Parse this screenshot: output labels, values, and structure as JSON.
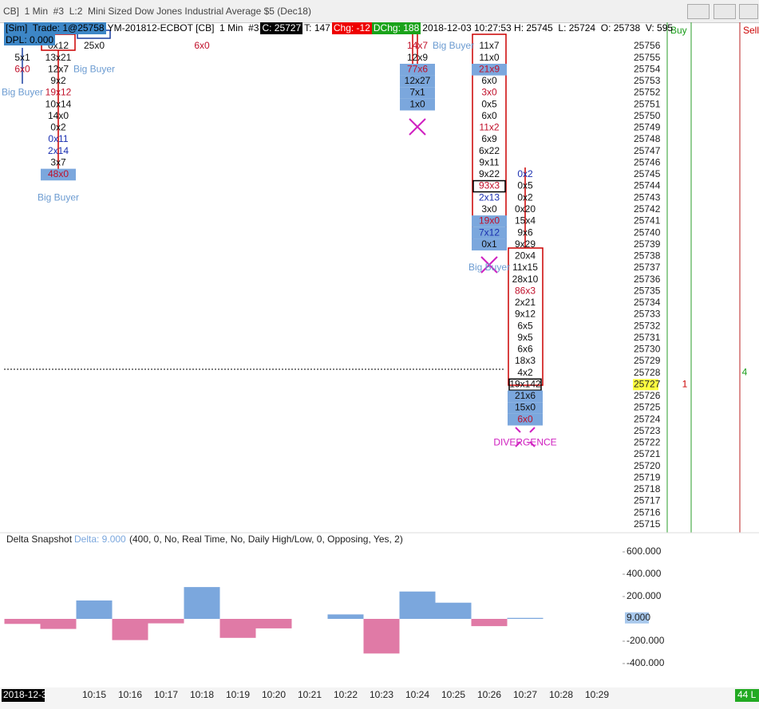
{
  "window_title": "CB]  1 Min  #3  L:2  Mini Sized Dow Jones Industrial Average $5 (Dec18)",
  "header": {
    "sim": "[Sim]  Trade: 1@25758",
    "instrument": "YM-201812-ECBOT [CB]  1 Min  #3",
    "close": "C: 25727",
    "ticks": "T: 147",
    "chg": "Chg: -12",
    "dchg": "DChg: 188",
    "info": "2018-12-03 10:27:53 H: 25745  L: 25724  O: 25738  V: 595",
    "dpl": "DPL: 0.000"
  },
  "prices": [
    25756,
    25755,
    25754,
    25753,
    25752,
    25751,
    25750,
    25749,
    25748,
    25747,
    25746,
    25745,
    25744,
    25743,
    25742,
    25741,
    25740,
    25739,
    25738,
    25737,
    25736,
    25735,
    25734,
    25733,
    25732,
    25731,
    25730,
    25729,
    25728,
    25727,
    25726,
    25725,
    25724,
    25723,
    25722,
    25721,
    25720,
    25719,
    25718,
    25717,
    25716,
    25715
  ],
  "current_price": 25727,
  "side_columns": {
    "buy": "Buy",
    "sell": "Sell",
    "buy_value": "1",
    "sell_value": "4"
  },
  "bars": {
    "times": [
      null,
      null,
      "10:15",
      "10:16",
      "10:17",
      "10:18",
      "10:19",
      "10:20",
      "10:21",
      "10:22",
      "10:23",
      "10:24",
      "10:25",
      "10:26",
      "10:27",
      "10:28",
      "10:29"
    ]
  },
  "footprint": [
    {
      "bar": 0,
      "top": 25755,
      "cells": [
        {
          "text": "5x1"
        },
        {
          "text": "6x0",
          "tone": "red"
        }
      ]
    },
    {
      "bar": 1,
      "top": 25756,
      "cells": [
        {
          "text": "0x12"
        },
        {
          "text": "13x21"
        },
        {
          "text": "12x7"
        },
        {
          "text": "9x2"
        },
        {
          "text": "19x12",
          "tone": "red"
        },
        {
          "text": "10x14"
        },
        {
          "text": "14x0"
        },
        {
          "text": "0x2"
        },
        {
          "text": "0x11",
          "tone": "blue"
        },
        {
          "text": "2x14",
          "tone": "blue"
        },
        {
          "text": "3x7"
        },
        {
          "text": "48x0",
          "tone": "red",
          "hl": true
        }
      ]
    },
    {
      "bar": 2,
      "top": 25756,
      "cells": [
        {
          "text": "25x0"
        }
      ]
    },
    {
      "bar": 5,
      "top": 25756,
      "cells": [
        {
          "text": "6x0",
          "tone": "red"
        }
      ]
    },
    {
      "bar": 11,
      "top": 25756,
      "cells": [
        {
          "text": "14x7",
          "tone": "red"
        },
        {
          "text": "12x9"
        },
        {
          "text": "77x6",
          "tone": "red",
          "hl": true
        },
        {
          "text": "12x27",
          "hl": true
        },
        {
          "text": "7x1",
          "hl": true
        },
        {
          "text": "1x0",
          "hl": true
        }
      ]
    },
    {
      "bar": 13,
      "top": 25756,
      "cells": [
        {
          "text": "11x7"
        },
        {
          "text": "11x0"
        },
        {
          "text": "21x9",
          "tone": "red",
          "hl": true
        },
        {
          "text": "6x0"
        },
        {
          "text": "3x0",
          "tone": "red"
        },
        {
          "text": "0x5"
        },
        {
          "text": "6x0"
        },
        {
          "text": "11x2",
          "tone": "red"
        },
        {
          "text": "6x9"
        },
        {
          "text": "6x22"
        },
        {
          "text": "9x11"
        },
        {
          "text": "9x22"
        },
        {
          "text": "93x3",
          "tone": "red",
          "boxed": true
        },
        {
          "text": "2x13",
          "tone": "blue"
        },
        {
          "text": "3x0"
        },
        {
          "text": "19x0",
          "tone": "red",
          "hl": true
        },
        {
          "text": "7x12",
          "tone": "blue",
          "hl": true
        },
        {
          "text": "0x1",
          "hl": true
        }
      ]
    },
    {
      "bar": 14,
      "top": 25745,
      "cells": [
        {
          "text": "0x2",
          "tone": "blue"
        },
        {
          "text": "0x5"
        },
        {
          "text": "0x2"
        },
        {
          "text": "0x20"
        },
        {
          "text": "15x4"
        },
        {
          "text": "9x6"
        },
        {
          "text": "9x29"
        },
        {
          "text": "20x4"
        },
        {
          "text": "11x15"
        },
        {
          "text": "28x10"
        },
        {
          "text": "86x3",
          "tone": "red"
        },
        {
          "text": "2x21"
        },
        {
          "text": "9x12"
        },
        {
          "text": "6x5"
        },
        {
          "text": "9x5"
        },
        {
          "text": "6x6"
        },
        {
          "text": "18x3"
        },
        {
          "text": "4x2"
        },
        {
          "text": "19x142",
          "boxed": true
        },
        {
          "text": "21x6",
          "hl": true
        },
        {
          "text": "15x0",
          "hl": true
        },
        {
          "text": "6x0",
          "tone": "red",
          "hl": true
        }
      ]
    }
  ],
  "annotations": [
    {
      "text": "Big Buyer",
      "bar": 0,
      "price": 25752,
      "tone": "blue"
    },
    {
      "text": "Big Buyer",
      "bar": 2,
      "price": 25754,
      "tone": "blue"
    },
    {
      "text": "Big Buyer",
      "bar": 1,
      "price": 25743,
      "tone": "blue"
    },
    {
      "text": "Big Buyer",
      "bar": 12,
      "price": 25756,
      "tone": "blue"
    },
    {
      "text": "Big Buyer",
      "bar": 13,
      "price": 25737,
      "tone": "blue"
    },
    {
      "text": "DIVERGENCE",
      "bar": 14,
      "price": 25722,
      "tone": "magenta"
    }
  ],
  "delta": {
    "title": "Delta Snapshot",
    "delta_label": "Delta: 9.000",
    "params": "(400, 0, No, Real Time, No, Daily High/Low, 0, Opposing, Yes, 2)",
    "values": [
      -45,
      -90,
      165,
      -190,
      -40,
      285,
      -170,
      -85,
      null,
      40,
      -310,
      245,
      145,
      -65,
      9
    ],
    "ylim": [
      -500,
      650
    ],
    "yticks": [
      {
        "value": 600,
        "label": "600.000"
      },
      {
        "value": 400,
        "label": "400.000"
      },
      {
        "value": 200,
        "label": "200.000"
      },
      {
        "value": -200,
        "label": "-200.000"
      },
      {
        "value": -400,
        "label": "-400.000"
      }
    ],
    "current": {
      "value": 9,
      "label": "9.000"
    },
    "positive_color": "#7ba7dd",
    "negative_color": "#e07aa6"
  },
  "footer": {
    "date": "2018-12-3",
    "status": "44 L"
  }
}
